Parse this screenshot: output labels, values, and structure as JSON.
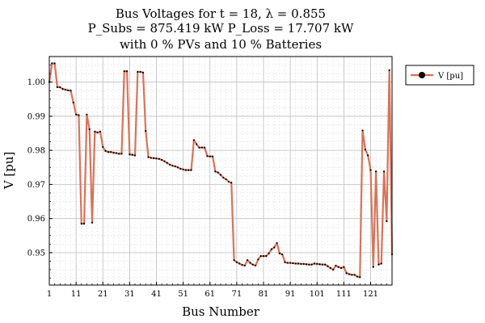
{
  "chart_data": {
    "type": "line",
    "title_lines": [
      "Bus Voltages for t = 18, λ = 0.855",
      "P_Subs = 875.419 kW P_Loss = 17.707 kW",
      "with 0 % PVs and 10 % Batteries"
    ],
    "xlabel": "Bus Number",
    "ylabel": "V [pu]",
    "xlim": [
      1,
      129
    ],
    "ylim": [
      0.9405,
      1.0075
    ],
    "x_ticks": [
      1,
      11,
      21,
      31,
      41,
      51,
      61,
      71,
      81,
      91,
      101,
      111,
      121
    ],
    "y_ticks": [
      0.95,
      0.96,
      0.97,
      0.98,
      0.99,
      1.0
    ],
    "y_tick_labels": [
      "0.95",
      "0.96",
      "0.97",
      "0.98",
      "0.99",
      "1.00"
    ],
    "grid": true,
    "legend_position": "outside-top-right",
    "series": [
      {
        "name": "V [pu]",
        "color": "#d9735a",
        "marker_color": "#000000",
        "x": [
          1,
          2,
          3,
          4,
          5,
          6,
          7,
          8,
          9,
          10,
          11,
          12,
          13,
          14,
          15,
          16,
          17,
          18,
          19,
          20,
          21,
          22,
          23,
          24,
          25,
          26,
          27,
          28,
          29,
          30,
          31,
          32,
          33,
          34,
          35,
          36,
          37,
          38,
          39,
          40,
          41,
          42,
          43,
          44,
          45,
          46,
          47,
          48,
          49,
          50,
          51,
          52,
          53,
          54,
          55,
          56,
          57,
          58,
          59,
          60,
          61,
          62,
          63,
          64,
          65,
          66,
          67,
          68,
          69,
          70,
          71,
          72,
          73,
          74,
          75,
          76,
          77,
          78,
          79,
          80,
          81,
          82,
          83,
          84,
          85,
          86,
          87,
          88,
          89,
          90,
          91,
          92,
          93,
          94,
          95,
          96,
          97,
          98,
          99,
          100,
          101,
          102,
          103,
          104,
          105,
          106,
          107,
          108,
          109,
          110,
          111,
          112,
          113,
          114,
          115,
          116,
          117,
          118,
          119,
          120,
          121,
          122,
          123,
          124,
          125,
          126,
          127,
          128,
          129
        ],
        "y": [
          1.0,
          1.0055,
          1.0055,
          0.9985,
          0.9985,
          0.998,
          0.9978,
          0.9976,
          0.9975,
          0.994,
          0.9905,
          0.9903,
          0.9585,
          0.9585,
          0.9905,
          0.9862,
          0.9588,
          0.9855,
          0.9852,
          0.9855,
          0.981,
          0.9798,
          0.9795,
          0.9795,
          0.9793,
          0.9792,
          0.979,
          0.979,
          1.0032,
          1.0032,
          0.9788,
          0.9787,
          0.9785,
          1.003,
          1.003,
          1.0028,
          0.9857,
          0.978,
          0.9778,
          0.9777,
          0.9776,
          0.9775,
          0.9772,
          0.9768,
          0.9763,
          0.9758,
          0.9755,
          0.9753,
          0.975,
          0.9746,
          0.9744,
          0.9742,
          0.9742,
          0.9742,
          0.983,
          0.9818,
          0.9808,
          0.9808,
          0.9808,
          0.9783,
          0.9782,
          0.9782,
          0.9738,
          0.9735,
          0.9728,
          0.972,
          0.9715,
          0.9708,
          0.9705,
          0.9478,
          0.9472,
          0.9468,
          0.9464,
          0.9462,
          0.9478,
          0.947,
          0.9465,
          0.9462,
          0.948,
          0.949,
          0.949,
          0.949,
          0.9498,
          0.951,
          0.9515,
          0.9528,
          0.9498,
          0.9495,
          0.9472,
          0.947,
          0.947,
          0.9469,
          0.9468,
          0.9468,
          0.9467,
          0.9467,
          0.9466,
          0.9465,
          0.9465,
          0.9468,
          0.9467,
          0.9466,
          0.9465,
          0.9465,
          0.946,
          0.9455,
          0.945,
          0.9462,
          0.9458,
          0.9455,
          0.9458,
          0.944,
          0.9437,
          0.9435,
          0.9435,
          0.943,
          0.9428,
          0.9858,
          0.9802,
          0.9785,
          0.9742,
          0.9458,
          0.9738,
          0.9465,
          0.9468,
          0.9738,
          0.9592,
          1.0035,
          0.9495
        ]
      }
    ]
  }
}
